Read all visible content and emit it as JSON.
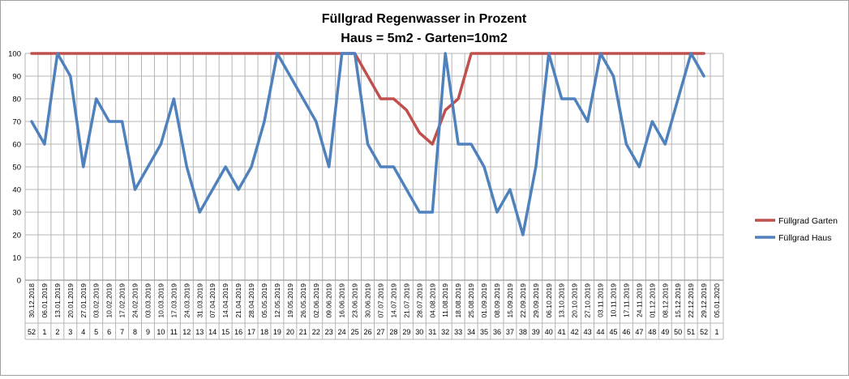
{
  "chart_data": {
    "type": "line",
    "title": "Füllgrad Regenwasser in Prozent",
    "subtitle": "Haus = 5m2 - Garten=10m2",
    "ylim": [
      0,
      100
    ],
    "yticks": [
      "0",
      "10",
      "20",
      "30",
      "40",
      "50",
      "60",
      "70",
      "80",
      "90",
      "100"
    ],
    "grid": true,
    "legend_position": "right",
    "dates": [
      "30.12.2018",
      "06.01.2019",
      "13.01.2019",
      "20.01.2019",
      "27.01.2019",
      "03.02.2019",
      "10.02.2019",
      "17.02.2019",
      "24.02.2019",
      "03.03.2019",
      "10.03.2019",
      "17.03.2019",
      "24.03.2019",
      "31.03.2019",
      "07.04.2019",
      "14.04.2019",
      "21.04.2019",
      "28.04.2019",
      "05.05.2019",
      "12.05.2019",
      "19.05.2019",
      "26.05.2019",
      "02.06.2019",
      "09.06.2019",
      "16.06.2019",
      "23.06.2019",
      "30.06.2019",
      "07.07.2019",
      "14.07.2019",
      "21.07.2019",
      "28.07.2019",
      "04.08.2019",
      "11.08.2019",
      "18.08.2019",
      "25.08.2019",
      "01.09.2019",
      "08.09.2019",
      "15.09.2019",
      "22.09.2019",
      "29.09.2019",
      "06.10.2019",
      "13.10.2019",
      "20.10.2019",
      "27.10.2019",
      "03.11.2019",
      "10.11.2019",
      "17.11.2019",
      "24.11.2019",
      "01.12.2019",
      "08.12.2019",
      "15.12.2019",
      "22.12.2019",
      "29.12.2019",
      "05.01.2020"
    ],
    "weeks": [
      "52",
      "1",
      "2",
      "3",
      "4",
      "5",
      "6",
      "7",
      "8",
      "9",
      "10",
      "11",
      "12",
      "13",
      "14",
      "15",
      "16",
      "17",
      "18",
      "19",
      "20",
      "21",
      "22",
      "23",
      "24",
      "25",
      "26",
      "27",
      "28",
      "29",
      "30",
      "31",
      "32",
      "33",
      "34",
      "35",
      "36",
      "37",
      "38",
      "39",
      "40",
      "41",
      "42",
      "43",
      "44",
      "45",
      "46",
      "47",
      "48",
      "49",
      "50",
      "51",
      "52",
      "1"
    ],
    "series": [
      {
        "name": "Füllgrad Garten",
        "color": "#c0504d",
        "values": [
          100,
          100,
          100,
          100,
          100,
          100,
          100,
          100,
          100,
          100,
          100,
          100,
          100,
          100,
          100,
          100,
          100,
          100,
          100,
          100,
          100,
          100,
          100,
          100,
          100,
          100,
          90,
          80,
          80,
          75,
          65,
          60,
          75,
          80,
          100,
          100,
          100,
          100,
          100,
          100,
          100,
          100,
          100,
          100,
          100,
          100,
          100,
          100,
          100,
          100,
          100,
          100,
          100,
          null
        ]
      },
      {
        "name": "Füllgrad Haus",
        "color": "#4f81bd",
        "values": [
          70,
          60,
          100,
          90,
          50,
          80,
          70,
          70,
          40,
          50,
          60,
          80,
          50,
          30,
          40,
          50,
          40,
          50,
          70,
          100,
          90,
          80,
          70,
          50,
          100,
          100,
          60,
          50,
          50,
          40,
          30,
          30,
          100,
          60,
          60,
          50,
          30,
          40,
          20,
          50,
          100,
          80,
          80,
          70,
          100,
          90,
          60,
          50,
          70,
          60,
          80,
          100,
          90,
          null
        ]
      }
    ]
  }
}
